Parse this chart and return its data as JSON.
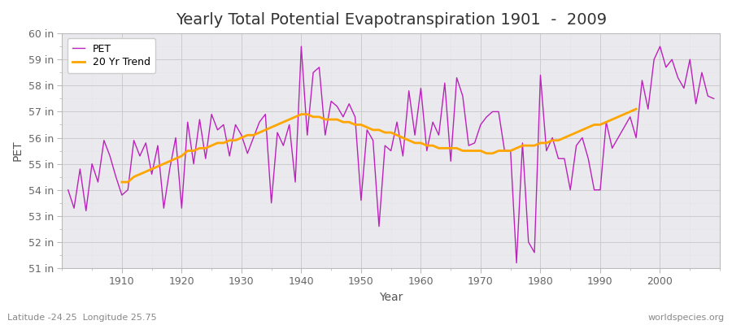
{
  "title": "Yearly Total Potential Evapotranspiration 1901  -  2009",
  "xlabel": "Year",
  "ylabel": "PET",
  "footnote_left": "Latitude -24.25  Longitude 25.75",
  "footnote_right": "worldspecies.org",
  "pet_color": "#BB22BB",
  "trend_color": "#FFA500",
  "fig_bg_color": "#FFFFFF",
  "plot_bg_color": "#EAEAEE",
  "ylim": [
    51,
    60
  ],
  "years": [
    1901,
    1902,
    1903,
    1904,
    1905,
    1906,
    1907,
    1908,
    1909,
    1910,
    1911,
    1912,
    1913,
    1914,
    1915,
    1916,
    1917,
    1918,
    1919,
    1920,
    1921,
    1922,
    1923,
    1924,
    1925,
    1926,
    1927,
    1928,
    1929,
    1930,
    1931,
    1932,
    1933,
    1934,
    1935,
    1936,
    1937,
    1938,
    1939,
    1940,
    1941,
    1942,
    1943,
    1944,
    1945,
    1946,
    1947,
    1948,
    1949,
    1950,
    1951,
    1952,
    1953,
    1954,
    1955,
    1956,
    1957,
    1958,
    1959,
    1960,
    1961,
    1962,
    1963,
    1964,
    1965,
    1966,
    1967,
    1968,
    1969,
    1970,
    1971,
    1972,
    1973,
    1974,
    1975,
    1976,
    1977,
    1978,
    1979,
    1980,
    1981,
    1982,
    1983,
    1984,
    1985,
    1986,
    1987,
    1988,
    1989,
    1990,
    1991,
    1992,
    1993,
    1994,
    1995,
    1996,
    1997,
    1998,
    1999,
    2000,
    2001,
    2002,
    2003,
    2004,
    2005,
    2006,
    2007,
    2008,
    2009
  ],
  "pet_values": [
    54.0,
    53.3,
    54.8,
    53.2,
    55.0,
    54.3,
    55.9,
    55.3,
    54.5,
    53.8,
    54.0,
    55.9,
    55.3,
    55.8,
    54.6,
    55.7,
    53.3,
    54.8,
    56.0,
    53.3,
    56.6,
    55.0,
    56.7,
    55.2,
    56.9,
    56.3,
    56.5,
    55.3,
    56.5,
    56.1,
    55.4,
    56.0,
    56.6,
    56.9,
    53.5,
    56.2,
    55.7,
    56.5,
    54.3,
    59.5,
    56.1,
    58.5,
    58.7,
    56.1,
    57.4,
    57.2,
    56.8,
    57.3,
    56.8,
    53.6,
    56.3,
    55.9,
    52.6,
    55.7,
    55.5,
    56.6,
    55.3,
    57.8,
    56.1,
    57.9,
    55.5,
    56.6,
    56.1,
    58.1,
    55.1,
    58.3,
    57.6,
    55.7,
    55.8,
    56.5,
    56.8,
    57.0,
    57.0,
    55.5,
    55.5,
    51.2,
    55.8,
    52.0,
    51.6,
    58.4,
    55.5,
    56.0,
    55.2,
    55.2,
    54.0,
    55.7,
    56.0,
    55.2,
    54.0,
    54.0,
    56.6,
    55.6,
    56.0,
    56.4,
    56.8,
    56.0,
    58.2,
    57.1,
    59.0,
    59.5,
    58.7,
    59.0,
    58.3,
    57.9,
    59.0,
    57.3,
    58.5,
    57.6,
    57.5
  ],
  "trend_values": [
    null,
    null,
    null,
    null,
    null,
    null,
    null,
    null,
    null,
    54.3,
    54.3,
    54.5,
    54.6,
    54.7,
    54.8,
    54.9,
    55.0,
    55.1,
    55.2,
    55.3,
    55.5,
    55.5,
    55.6,
    55.6,
    55.7,
    55.8,
    55.8,
    55.9,
    55.9,
    56.0,
    56.1,
    56.1,
    56.2,
    56.3,
    56.4,
    56.5,
    56.6,
    56.7,
    56.8,
    56.9,
    56.9,
    56.8,
    56.8,
    56.7,
    56.7,
    56.7,
    56.6,
    56.6,
    56.5,
    56.5,
    56.4,
    56.3,
    56.3,
    56.2,
    56.2,
    56.1,
    56.0,
    55.9,
    55.8,
    55.8,
    55.7,
    55.7,
    55.6,
    55.6,
    55.6,
    55.6,
    55.5,
    55.5,
    55.5,
    55.5,
    55.4,
    55.4,
    55.5,
    55.5,
    55.5,
    55.6,
    55.7,
    55.7,
    55.7,
    55.8,
    55.8,
    55.9,
    55.9,
    56.0,
    56.1,
    56.2,
    56.3,
    56.4,
    56.5,
    56.5,
    56.6,
    56.7,
    56.8,
    56.9,
    57.0,
    57.1,
    null,
    null,
    null,
    null,
    null,
    null,
    null,
    null,
    null,
    null,
    null,
    null
  ],
  "yticks": [
    51,
    52,
    53,
    54,
    55,
    56,
    57,
    58,
    59,
    60
  ],
  "ytick_labels": [
    "51 in",
    "52 in",
    "53 in",
    "54 in",
    "55 in",
    "56 in",
    "57 in",
    "58 in",
    "59 in",
    "60 in"
  ],
  "xticks": [
    1910,
    1920,
    1930,
    1940,
    1950,
    1960,
    1970,
    1980,
    1990,
    2000
  ],
  "major_grid_color": "#CCCCCC",
  "minor_grid_color": "#DDDDDD",
  "legend_loc": "upper left",
  "title_fontsize": 14,
  "axis_label_fontsize": 10,
  "tick_fontsize": 9,
  "footnote_fontsize": 8
}
